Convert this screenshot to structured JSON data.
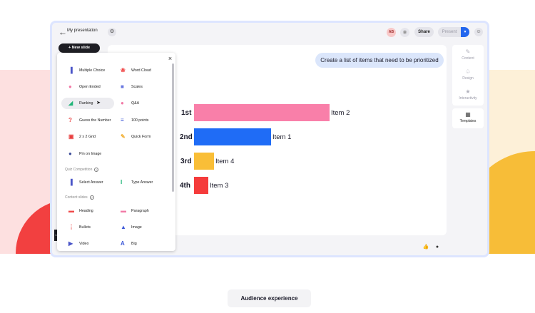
{
  "topbar": {
    "title": "My presentation",
    "avatar_initials": "AB",
    "share_label": "Share",
    "present_label": "Present"
  },
  "sidebar": {
    "new_slide_label": "+ New slide"
  },
  "slide": {
    "prompt": "Create a list of items that need to be prioritized",
    "rankings": [
      {
        "rank": "1st",
        "item": "Item 2",
        "value": 100,
        "color": "#f97fa9"
      },
      {
        "rank": "2nd",
        "item": "Item 1",
        "value": 57,
        "color": "#1f6cf6"
      },
      {
        "rank": "3rd",
        "item": "Item 4",
        "value": 14.5,
        "color": "#f9be37"
      },
      {
        "rank": "4th",
        "item": "Item 3",
        "value": 10.6,
        "color": "#f53b3b"
      }
    ]
  },
  "right_panel": {
    "content_label": "Content",
    "design_label": "Design",
    "interactivity_label": "Interactivity",
    "templates_label": "Templates"
  },
  "menu": {
    "slide_types": [
      {
        "label": "Multiple Choice",
        "icon": "bar-chart-icon",
        "color": "#4a55c8"
      },
      {
        "label": "Word Cloud",
        "icon": "word-cloud-icon",
        "color": "#f04848"
      },
      {
        "label": "Open Ended",
        "icon": "speech-bubble-icon",
        "color": "#f27aa6"
      },
      {
        "label": "Scales",
        "icon": "scales-icon",
        "color": "#6a78e0"
      },
      {
        "label": "Ranking",
        "icon": "ranking-icon",
        "color": "#1fb577"
      },
      {
        "label": "Q&A",
        "icon": "qa-icon",
        "color": "#f27aa6"
      },
      {
        "label": "Guess the Number",
        "icon": "question-icon",
        "color": "#e84040"
      },
      {
        "label": "100 points",
        "icon": "points-icon",
        "color": "#3f5ad8"
      },
      {
        "label": "2 x 2 Grid",
        "icon": "grid-icon",
        "color": "#e84040"
      },
      {
        "label": "Quick Form",
        "icon": "pencil-icon",
        "color": "#f2b035"
      },
      {
        "label": "Pin on Image",
        "icon": "pin-icon",
        "color": "#3f4f9a"
      }
    ],
    "quiz_title": "Quiz Competition",
    "quiz_types": [
      {
        "label": "Select Answer",
        "icon": "bar-chart-icon",
        "color": "#4a55c8"
      },
      {
        "label": "Type Answer",
        "icon": "text-cursor-icon",
        "color": "#1fb577"
      }
    ],
    "content_title": "Content slides",
    "content_types": [
      {
        "label": "Heading",
        "icon": "heading-icon",
        "color": "#f04848"
      },
      {
        "label": "Paragraph",
        "icon": "paragraph-icon",
        "color": "#f27aa6"
      },
      {
        "label": "Bullets",
        "icon": "bullets-icon",
        "color": "#e84040"
      },
      {
        "label": "Image",
        "icon": "image-icon",
        "color": "#3f5ad8"
      },
      {
        "label": "Video",
        "icon": "play-icon",
        "color": "#4a55c8"
      },
      {
        "label": "Big",
        "icon": "big-text-icon",
        "color": "#3f5ad8"
      }
    ]
  },
  "footer": {
    "audience_label": "Audience experience"
  }
}
